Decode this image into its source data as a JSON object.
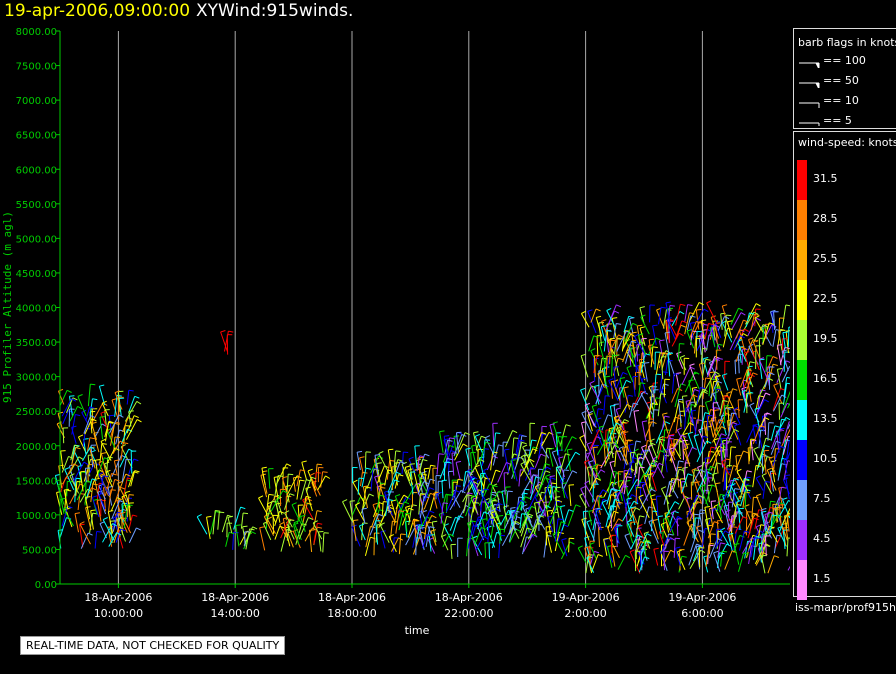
{
  "header": {
    "date_time": "19-apr-2006,09:00:00",
    "product": "XYWind:915winds."
  },
  "chart_data": {
    "type": "scatter",
    "title": "19-apr-2006,09:00:00 XYWind:915winds.",
    "xlabel": "time",
    "ylabel": "915 Profiler Altitude (m agl)",
    "x_range": [
      "2006-04-18 08:00",
      "2006-04-19 09:00"
    ],
    "y_range": [
      0,
      8000
    ],
    "y_ticks": [
      "0.00",
      "500.00",
      "1000.00",
      "1500.00",
      "2000.00",
      "2500.00",
      "3000.00",
      "3500.00",
      "4000.00",
      "4500.00",
      "5000.00",
      "5500.00",
      "6000.00",
      "6500.00",
      "7000.00",
      "7500.00",
      "8000.00"
    ],
    "x_ticks": [
      {
        "date": "18-Apr-2006",
        "time": "10:00:00",
        "t": "2006-04-18 10:00"
      },
      {
        "date": "18-Apr-2006",
        "time": "14:00:00",
        "t": "2006-04-18 14:00"
      },
      {
        "date": "18-Apr-2006",
        "time": "18:00:00",
        "t": "2006-04-18 18:00"
      },
      {
        "date": "18-Apr-2006",
        "time": "22:00:00",
        "t": "2006-04-18 22:00"
      },
      {
        "date": "19-Apr-2006",
        "time": "2:00:00",
        "t": "2006-04-19 02:00"
      },
      {
        "date": "19-Apr-2006",
        "time": "6:00:00",
        "t": "2006-04-19 06:00"
      }
    ],
    "vertical_gridlines": true,
    "series": [
      {
        "time_range": [
          "2006-04-18 08:00",
          "2006-04-18 10:30"
        ],
        "altitude_range": [
          500,
          2600
        ],
        "speed_range_knots": [
          7.5,
          31.5
        ]
      },
      {
        "time_range": [
          "2006-04-18 13:00",
          "2006-04-18 14:30"
        ],
        "altitude_range": [
          450,
          800
        ],
        "speed_range_knots": [
          7.5,
          22.5
        ]
      },
      {
        "time_range": [
          "2006-04-18 13:30",
          "2006-04-18 13:45"
        ],
        "altitude_range": [
          3300,
          3500
        ],
        "speed_range_knots": [
          31.5,
          31.5
        ]
      },
      {
        "time_range": [
          "2006-04-18 15:00",
          "2006-04-18 17:00"
        ],
        "altitude_range": [
          450,
          1500
        ],
        "speed_range_knots": [
          16.5,
          31.5
        ]
      },
      {
        "time_range": [
          "2006-04-18 18:00",
          "2006-04-18 21:00"
        ],
        "altitude_range": [
          400,
          1700
        ],
        "speed_range_knots": [
          4.5,
          28.5
        ]
      },
      {
        "time_range": [
          "2006-04-18 21:00",
          "2006-04-19 01:30"
        ],
        "altitude_range": [
          350,
          2000
        ],
        "speed_range_knots": [
          4.5,
          22.5
        ]
      },
      {
        "time_range": [
          "2006-04-19 02:00",
          "2006-04-19 09:00"
        ],
        "altitude_range": [
          150,
          3800
        ],
        "speed_range_knots": [
          1.5,
          31.5
        ]
      }
    ]
  },
  "legend": {
    "barb_title": "barb flags in knots",
    "barbs": [
      {
        "label": "== 100"
      },
      {
        "label": "== 50"
      },
      {
        "label": "== 10"
      },
      {
        "label": "== 5"
      }
    ],
    "speed_title": "wind-speed: knots",
    "colorbar": [
      {
        "label": "31.5",
        "color": "#ff0000"
      },
      {
        "label": "28.5",
        "color": "#ff7f00"
      },
      {
        "label": "25.5",
        "color": "#ffaa00"
      },
      {
        "label": "22.5",
        "color": "#ffff00"
      },
      {
        "label": "19.5",
        "color": "#aaff33"
      },
      {
        "label": "16.5",
        "color": "#00dd00"
      },
      {
        "label": "13.5",
        "color": "#00ffff"
      },
      {
        "label": "10.5",
        "color": "#0000ff"
      },
      {
        "label": "7.5",
        "color": "#6f9fff"
      },
      {
        "label": "4.5",
        "color": "#9f2fff"
      },
      {
        "label": "1.5",
        "color": "#ff88ff"
      }
    ]
  },
  "footer": {
    "source": "iss-mapr/prof915h",
    "qc_note": "REAL-TIME DATA, NOT CHECKED FOR QUALITY"
  },
  "colors": {
    "axis": "#00cc00",
    "title_date": "#ffff00",
    "gridline": "#aaaaaa"
  }
}
